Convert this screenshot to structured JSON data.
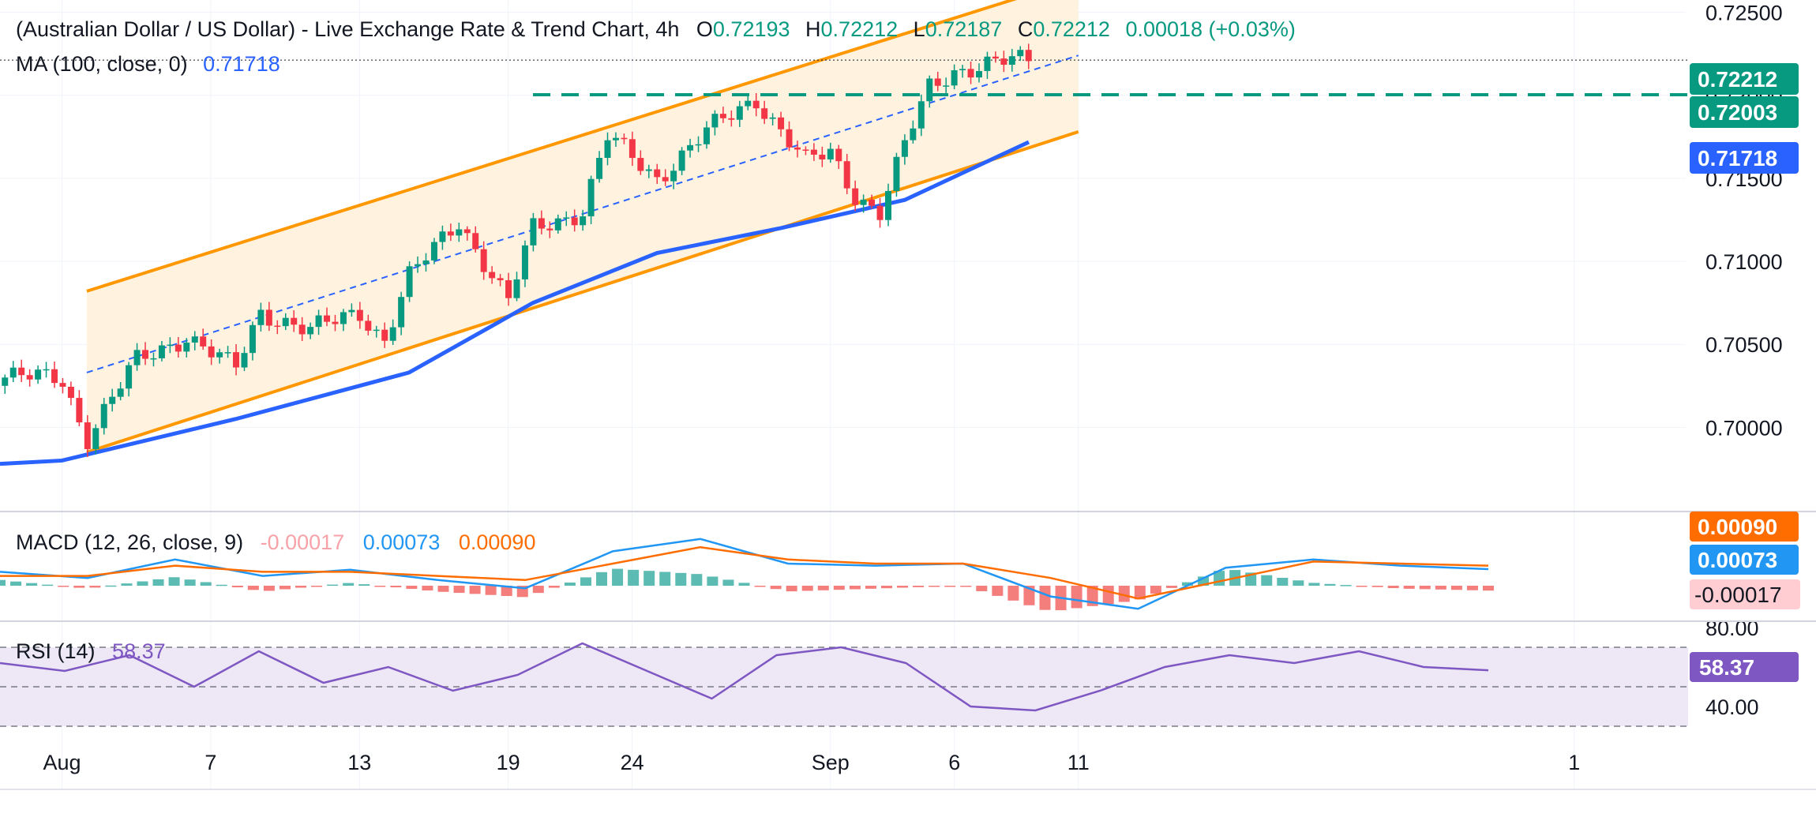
{
  "header": {
    "title": "(Australian Dollar / US Dollar) - Live Exchange Rate & Trend Chart, 4h",
    "o_label": "O",
    "o_value": "0.72193",
    "h_label": "H",
    "h_value": "0.72212",
    "l_label": "L",
    "l_value": "0.72187",
    "c_label": "C",
    "c_value": "0.72212",
    "change": "0.00018 (+0.03%)"
  },
  "ma_legend": {
    "label": "MA (100, close, 0)",
    "value": "0.71718"
  },
  "macd_legend": {
    "label": "MACD (12, 26, close, 9)",
    "hist": "-0.00017",
    "macd": "0.00073",
    "signal": "0.00090"
  },
  "rsi_legend": {
    "label": "RSI (14)",
    "value": "58.37"
  },
  "price_tags": {
    "last": "0.72212",
    "support": "0.72003",
    "ma": "0.71718"
  },
  "macd_tags": {
    "signal": "0.00090",
    "macd": "0.00073",
    "hist": "-0.00017"
  },
  "rsi_tag": "58.37",
  "colors": {
    "up": "#089981",
    "down": "#f23645",
    "ma": "#2962ff",
    "channel": "#ff9800",
    "channel_fill": "#fff3e0",
    "macd": "#2196f3",
    "signal": "#ff6d00",
    "rsi": "#7e57c2",
    "rsi_fill": "#ede7f6",
    "support": "#089981"
  },
  "chart_data": {
    "type": "candlestick",
    "title": "(Australian Dollar / US Dollar) - Live Exchange Rate & Trend Chart, 4h",
    "timeframe": "4h",
    "x_ticks": [
      "Aug",
      "7",
      "13",
      "19",
      "24",
      "Sep",
      "6",
      "11",
      "1"
    ],
    "price_axis": {
      "ticks": [
        "0.72500",
        "0.72000",
        "0.71500",
        "0.71000",
        "0.70500",
        "0.70000"
      ],
      "range": [
        0.6965,
        0.7255
      ]
    },
    "price_path": [
      [
        "Aug 1",
        0.703
      ],
      [
        "Aug 2",
        0.6993
      ],
      [
        "Aug 4",
        0.704
      ],
      [
        "Aug 6",
        0.7055
      ],
      [
        "Aug 8",
        0.7035
      ],
      [
        "Aug 9",
        0.707
      ],
      [
        "Aug 11",
        0.7058
      ],
      [
        "Aug 13",
        0.707
      ],
      [
        "Aug 14",
        0.7052
      ],
      [
        "Aug 15",
        0.709
      ],
      [
        "Aug 17",
        0.7125
      ],
      [
        "Aug 19",
        0.7075
      ],
      [
        "Aug 20",
        0.712
      ],
      [
        "Aug 22",
        0.713
      ],
      [
        "Aug 23",
        0.7175
      ],
      [
        "Aug 25",
        0.715
      ],
      [
        "Aug 27",
        0.7178
      ],
      [
        "Aug 29",
        0.7198
      ],
      [
        "Aug 31",
        0.716
      ],
      [
        "Sep 1",
        0.7165
      ],
      [
        "Sep 2",
        0.714
      ],
      [
        "Sep 3",
        0.713
      ],
      [
        "Sep 4",
        0.717
      ],
      [
        "Sep 5",
        0.7205
      ],
      [
        "Sep 6",
        0.7215
      ],
      [
        "Sep 8",
        0.722
      ],
      [
        "Sep 9",
        0.72212
      ]
    ],
    "last": {
      "open": 0.72193,
      "high": 0.72212,
      "low": 0.72187,
      "close": 0.72212,
      "change": 0.00018,
      "change_pct": 0.03
    },
    "support_level": 0.72003,
    "ma_100": {
      "label": "MA (100, close, 0)",
      "last": 0.71718,
      "path": [
        [
          "Aug 1",
          0.698
        ],
        [
          "Aug 8",
          0.7005
        ],
        [
          "Aug 15",
          0.7033
        ],
        [
          "Aug 20",
          0.7075
        ],
        [
          "Aug 25",
          0.7105
        ],
        [
          "Aug 30",
          0.712
        ],
        [
          "Sep 4",
          0.7137
        ],
        [
          "Sep 9",
          0.71718
        ]
      ]
    },
    "channel": {
      "upper": [
        [
          "Aug 2",
          0.7082
        ],
        [
          "Sep 11",
          0.727
        ]
      ],
      "lower": [
        [
          "Aug 2",
          0.6985
        ],
        [
          "Sep 11",
          0.7178
        ]
      ],
      "mid": [
        [
          "Aug 2",
          0.7033
        ],
        [
          "Sep 11",
          0.7224
        ]
      ]
    },
    "macd": {
      "params": "12, 26, close, 9",
      "histogram": -0.00017,
      "macd": 0.00073,
      "signal": 0.0009,
      "macd_path": [
        0.0006,
        0.0003,
        0.0012,
        0.0004,
        0.0007,
        0.0002,
        -0.0002,
        0.0016,
        0.0022,
        0.001,
        0.0009,
        0.001,
        -0.0006,
        -0.0012,
        0.0008,
        0.0012,
        0.0009,
        0.00073
      ],
      "signal_path": [
        0.0004,
        0.0004,
        0.0009,
        0.0006,
        0.0006,
        0.0004,
        0.0002,
        0.001,
        0.0018,
        0.0012,
        0.001,
        0.001,
        0.0003,
        -0.0007,
        0.0002,
        0.0011,
        0.001,
        0.0009
      ]
    },
    "rsi": {
      "period": 14,
      "last": 58.37,
      "ticks": [
        "80.00",
        "40.00"
      ],
      "levels": [
        70,
        30
      ],
      "path": [
        62,
        58,
        66,
        50,
        68,
        52,
        60,
        48,
        56,
        72,
        58,
        44,
        66,
        70,
        62,
        40,
        38,
        48,
        60,
        66,
        62,
        68,
        60,
        58.37
      ]
    }
  }
}
